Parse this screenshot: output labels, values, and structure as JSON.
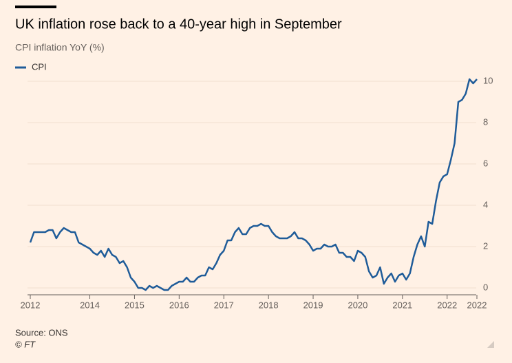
{
  "chart_data": {
    "type": "line",
    "title": "UK inflation rose back to a 40-year high in September",
    "subtitle": "CPI inflation YoY (%)",
    "source": "Source: ONS",
    "copyright": "© FT",
    "categories": [
      "2012",
      null,
      null,
      null,
      null,
      null,
      null,
      null,
      null,
      null,
      null,
      null,
      null,
      null,
      null,
      null,
      "2014",
      null,
      null,
      null,
      null,
      null,
      null,
      null,
      null,
      null,
      null,
      null,
      "2015",
      null,
      null,
      null,
      null,
      null,
      null,
      null,
      null,
      null,
      null,
      null,
      "2016",
      null,
      null,
      null,
      null,
      null,
      null,
      null,
      null,
      null,
      null,
      null,
      "2017",
      null,
      null,
      null,
      null,
      null,
      null,
      null,
      null,
      null,
      null,
      null,
      "2018",
      null,
      null,
      null,
      null,
      null,
      null,
      null,
      null,
      null,
      null,
      null,
      "2019",
      null,
      null,
      null,
      null,
      null,
      null,
      null,
      null,
      null,
      null,
      null,
      "2020",
      null,
      null,
      null,
      null,
      null,
      null,
      null,
      null,
      null,
      null,
      null,
      "2021",
      null,
      null,
      null,
      null,
      null,
      null,
      null,
      null,
      null,
      null,
      null,
      "2022",
      null,
      null,
      null,
      null,
      null,
      null,
      null,
      "2022"
    ],
    "series": [
      {
        "name": "CPI",
        "color": "#1f5c99",
        "values": [
          2.2,
          2.7,
          2.7,
          2.7,
          2.7,
          2.8,
          2.8,
          2.4,
          2.7,
          2.9,
          2.8,
          2.7,
          2.7,
          2.2,
          2.1,
          2.0,
          1.9,
          1.7,
          1.6,
          1.8,
          1.5,
          1.9,
          1.6,
          1.5,
          1.2,
          1.3,
          1.0,
          0.5,
          0.3,
          0.0,
          0.0,
          -0.1,
          0.1,
          0.0,
          0.1,
          0.0,
          -0.1,
          -0.1,
          0.1,
          0.2,
          0.3,
          0.3,
          0.5,
          0.3,
          0.3,
          0.5,
          0.6,
          0.6,
          1.0,
          0.9,
          1.2,
          1.6,
          1.8,
          2.3,
          2.3,
          2.7,
          2.9,
          2.6,
          2.6,
          2.9,
          3.0,
          3.0,
          3.1,
          3.0,
          3.0,
          2.7,
          2.5,
          2.4,
          2.4,
          2.4,
          2.5,
          2.7,
          2.4,
          2.4,
          2.3,
          2.1,
          1.8,
          1.9,
          1.9,
          2.1,
          2.0,
          2.0,
          2.1,
          1.7,
          1.7,
          1.5,
          1.5,
          1.3,
          1.8,
          1.7,
          1.5,
          0.8,
          0.5,
          0.6,
          1.0,
          0.2,
          0.5,
          0.7,
          0.3,
          0.6,
          0.7,
          0.4,
          0.7,
          1.5,
          2.1,
          2.5,
          2.0,
          3.2,
          3.1,
          4.2,
          5.1,
          5.4,
          5.5,
          6.2,
          7.0,
          9.0,
          9.1,
          9.4,
          10.1,
          9.9,
          10.1
        ]
      }
    ],
    "ylim": [
      -0.4,
      10.5
    ],
    "yticks": [
      0,
      2,
      4,
      6,
      8,
      10
    ],
    "grid": true
  }
}
